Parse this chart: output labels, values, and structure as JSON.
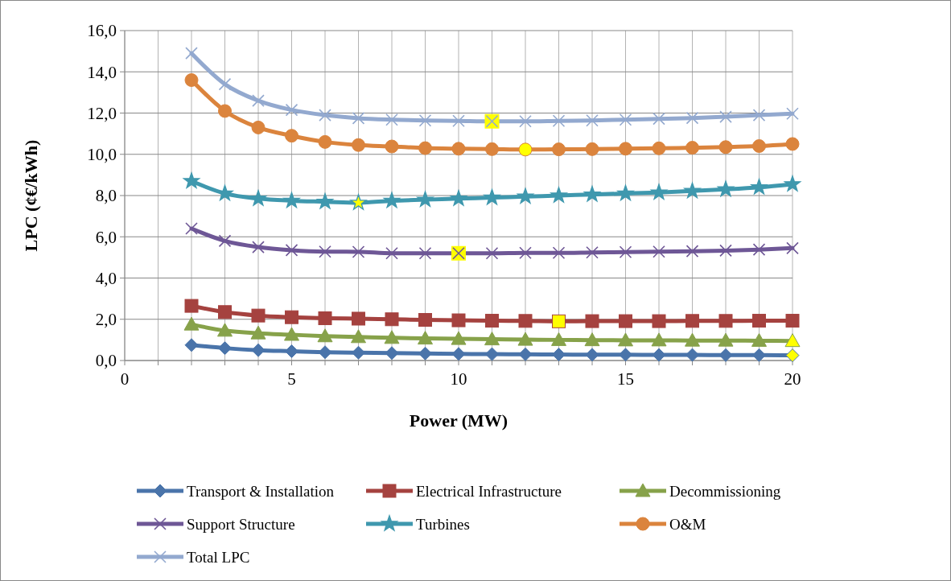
{
  "chart_data": {
    "type": "line",
    "xlabel": "Power (MW)",
    "ylabel": "LPC (¢€/kWh)",
    "x": [
      2,
      3,
      4,
      5,
      6,
      7,
      8,
      9,
      10,
      11,
      12,
      13,
      14,
      15,
      16,
      17,
      18,
      19,
      20
    ],
    "xlim": [
      0,
      20
    ],
    "xticks": [
      0,
      {
        "value": 1,
        "label": null
      },
      {
        "value": 2,
        "label": null
      },
      {
        "value": 3,
        "label": null
      },
      {
        "value": 4,
        "label": null
      },
      5,
      {
        "value": 6,
        "label": null
      },
      {
        "value": 7,
        "label": null
      },
      {
        "value": 8,
        "label": null
      },
      {
        "value": 9,
        "label": null
      },
      10,
      {
        "value": 11,
        "label": null
      },
      {
        "value": 12,
        "label": null
      },
      {
        "value": 13,
        "label": null
      },
      {
        "value": 14,
        "label": null
      },
      15,
      {
        "value": 16,
        "label": null
      },
      {
        "value": 17,
        "label": null
      },
      {
        "value": 18,
        "label": null
      },
      {
        "value": 19,
        "label": null
      },
      20
    ],
    "ylim": [
      0,
      16
    ],
    "yticks": [
      {
        "value": 0,
        "label": "0,0"
      },
      {
        "value": 2,
        "label": "2,0"
      },
      {
        "value": 4,
        "label": "4,0"
      },
      {
        "value": 6,
        "label": "6,0"
      },
      {
        "value": 8,
        "label": "8,0"
      },
      {
        "value": 10,
        "label": "10,0"
      },
      {
        "value": 12,
        "label": "12,0"
      },
      {
        "value": 14,
        "label": "14,0"
      },
      {
        "value": 16,
        "label": "16,0"
      }
    ],
    "grid": true,
    "legend": "bottom",
    "line_style": "solid",
    "series": [
      {
        "name": "Transport & Installation",
        "color": "#4a74aa",
        "marker": "diamond",
        "colors": [
          "#4a74aa",
          "#4a74aa",
          "#4a74aa",
          "#4a74aa",
          "#4a74aa",
          "#4a74aa",
          "#4a74aa",
          "#4a74aa",
          "#4a74aa",
          "#4a74aa",
          "#4a74aa",
          "#4a74aa",
          "#4a74aa",
          "#4a74aa",
          "#4a74aa",
          "#4a74aa",
          "#4a74aa",
          "#4a74aa",
          "#ffff00"
        ],
        "values": [
          0.75,
          0.6,
          0.5,
          0.45,
          0.4,
          0.38,
          0.36,
          0.34,
          0.32,
          0.31,
          0.3,
          0.29,
          0.28,
          0.28,
          0.27,
          0.27,
          0.26,
          0.26,
          0.25
        ]
      },
      {
        "name": "Electrical Infrastructure",
        "color": "#a5423f",
        "marker": "square",
        "colors": [
          "#a5423f",
          "#a5423f",
          "#a5423f",
          "#a5423f",
          "#a5423f",
          "#a5423f",
          "#a5423f",
          "#a5423f",
          "#a5423f",
          "#a5423f",
          "#a5423f",
          "#ffff00",
          "#a5423f",
          "#a5423f",
          "#a5423f",
          "#a5423f",
          "#a5423f",
          "#a5423f",
          "#a5423f"
        ],
        "values": [
          2.65,
          2.35,
          2.18,
          2.1,
          2.05,
          2.03,
          2.0,
          1.97,
          1.95,
          1.93,
          1.92,
          1.9,
          1.91,
          1.91,
          1.91,
          1.92,
          1.92,
          1.93,
          1.93
        ]
      },
      {
        "name": "Decommissioning",
        "color": "#87a24a",
        "marker": "triangle",
        "colors": [
          "#87a24a",
          "#87a24a",
          "#87a24a",
          "#87a24a",
          "#87a24a",
          "#87a24a",
          "#87a24a",
          "#87a24a",
          "#87a24a",
          "#87a24a",
          "#87a24a",
          "#87a24a",
          "#87a24a",
          "#87a24a",
          "#87a24a",
          "#87a24a",
          "#87a24a",
          "#87a24a",
          "#ffff00"
        ],
        "values": [
          1.75,
          1.45,
          1.32,
          1.25,
          1.18,
          1.14,
          1.1,
          1.07,
          1.05,
          1.03,
          1.01,
          1.0,
          0.99,
          0.98,
          0.98,
          0.97,
          0.97,
          0.96,
          0.95
        ]
      },
      {
        "name": "Support Structure",
        "color": "#6e5796",
        "marker": "cross",
        "colors": [
          "#6e5796",
          "#6e5796",
          "#6e5796",
          "#6e5796",
          "#6e5796",
          "#6e5796",
          "#6e5796",
          "#6e5796",
          "#ffff00",
          "#6e5796",
          "#6e5796",
          "#6e5796",
          "#6e5796",
          "#6e5796",
          "#6e5796",
          "#6e5796",
          "#6e5796",
          "#6e5796",
          "#6e5796"
        ],
        "values": [
          6.4,
          5.8,
          5.5,
          5.35,
          5.28,
          5.27,
          5.2,
          5.2,
          5.2,
          5.2,
          5.22,
          5.22,
          5.24,
          5.26,
          5.28,
          5.3,
          5.33,
          5.38,
          5.45
        ]
      },
      {
        "name": "Turbines",
        "color": "#3f98ae",
        "marker": "star",
        "colors": [
          "#3f98ae",
          "#3f98ae",
          "#3f98ae",
          "#3f98ae",
          "#3f98ae",
          "#ffff00",
          "#3f98ae",
          "#3f98ae",
          "#3f98ae",
          "#3f98ae",
          "#3f98ae",
          "#3f98ae",
          "#3f98ae",
          "#3f98ae",
          "#3f98ae",
          "#3f98ae",
          "#3f98ae",
          "#3f98ae",
          "#3f98ae"
        ],
        "values": [
          8.7,
          8.1,
          7.85,
          7.75,
          7.7,
          7.65,
          7.75,
          7.8,
          7.85,
          7.9,
          7.95,
          8.0,
          8.05,
          8.1,
          8.15,
          8.22,
          8.3,
          8.4,
          8.55
        ]
      },
      {
        "name": "O&M",
        "color": "#db843d",
        "marker": "circle",
        "colors": [
          "#db843d",
          "#db843d",
          "#db843d",
          "#db843d",
          "#db843d",
          "#db843d",
          "#db843d",
          "#db843d",
          "#db843d",
          "#db843d",
          "#ffff00",
          "#db843d",
          "#db843d",
          "#db843d",
          "#db843d",
          "#db843d",
          "#db843d",
          "#db843d",
          "#db843d"
        ],
        "values": [
          13.6,
          12.1,
          11.3,
          10.9,
          10.6,
          10.45,
          10.38,
          10.3,
          10.27,
          10.25,
          10.23,
          10.24,
          10.25,
          10.27,
          10.29,
          10.32,
          10.35,
          10.4,
          10.5
        ]
      },
      {
        "name": "Total LPC",
        "color": "#93a9cf",
        "marker": "cross",
        "colors": [
          "#93a9cf",
          "#93a9cf",
          "#93a9cf",
          "#93a9cf",
          "#93a9cf",
          "#93a9cf",
          "#93a9cf",
          "#93a9cf",
          "#93a9cf",
          "#ffff00",
          "#93a9cf",
          "#93a9cf",
          "#93a9cf",
          "#93a9cf",
          "#93a9cf",
          "#93a9cf",
          "#93a9cf",
          "#93a9cf",
          "#93a9cf"
        ],
        "values": [
          14.9,
          13.4,
          12.6,
          12.15,
          11.9,
          11.75,
          11.68,
          11.64,
          11.62,
          11.6,
          11.6,
          11.62,
          11.64,
          11.68,
          11.72,
          11.76,
          11.82,
          11.9,
          11.97
        ]
      }
    ]
  }
}
